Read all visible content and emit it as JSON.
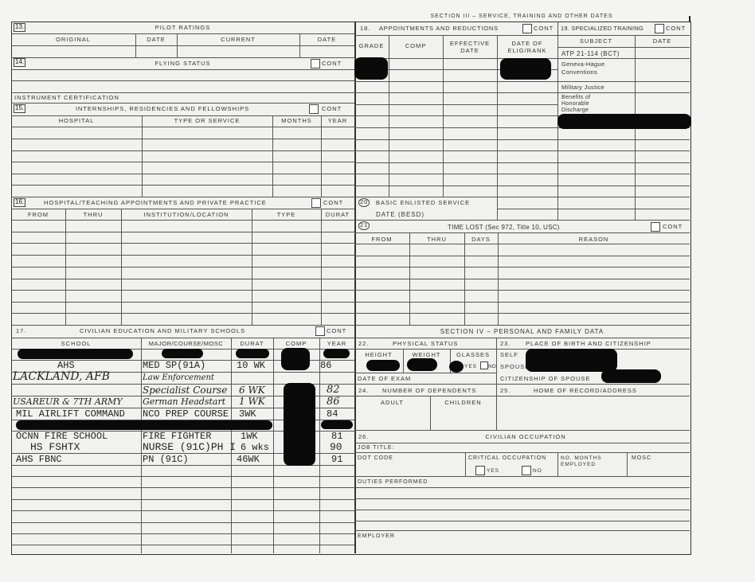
{
  "section3_title": "SECTION III – SERVICE, TRAINING AND OTHER DATES",
  "cont": "CONT",
  "s13": {
    "num": "13.",
    "title": "PILOT RATINGS",
    "cols": [
      "ORIGINAL",
      "DATE",
      "CURRENT",
      "DATE"
    ]
  },
  "s14": {
    "num": "14.",
    "title": "FLYING STATUS",
    "instrument": "INSTRUMENT CERTIFICATION"
  },
  "s15": {
    "num": "15.",
    "title": "INTERNSHIPS, RESIDENCIES AND FELLOWSHIPS",
    "cols": [
      "HOSPITAL",
      "TYPE OR SERVICE",
      "MONTHS",
      "YEAR"
    ]
  },
  "s16": {
    "num": "16.",
    "title": "HOSPITAL/TEACHING APPOINTMENTS AND PRIVATE PRACTICE",
    "cols": [
      "FROM",
      "THRU",
      "INSTITUTION/LOCATION",
      "TYPE",
      "DURAT"
    ]
  },
  "s17": {
    "num": "17.",
    "title": "CIVILIAN EDUCATION AND MILITARY SCHOOLS",
    "cols": [
      "SCHOOL",
      "MAJOR/COURSE/MOSC",
      "DURAT",
      "COMP",
      "YEAR"
    ],
    "rows": [
      {
        "school": "AHS",
        "major": "MED SP(91A)",
        "durat": "10 WK",
        "year": "86"
      },
      {
        "school": "LACKLAND, AFB",
        "major": "Law Enforcement",
        "durat": "",
        "year": ""
      },
      {
        "school": "",
        "major": "Specialist Course",
        "durat": "6 WK",
        "year": "82"
      },
      {
        "school": "USAREUR & 7TH ARMY",
        "major": "German Headstart",
        "durat": "1 WK",
        "year": "86"
      },
      {
        "school": "MIL AIRLIFT COMMAND",
        "major": "NCO PREP COURSE",
        "durat": "3WK",
        "year": "84"
      },
      {
        "school": "OCNN FIRE SCHOOL",
        "major": "FIRE FIGHTER",
        "durat": "1WK",
        "year": "81"
      },
      {
        "school": "HS FSHTX",
        "major": "NURSE (91C)PH I",
        "durat": "6 wks",
        "year": "90"
      },
      {
        "school": "AHS FBNC",
        "major": "PN (91C)",
        "durat": "46WK",
        "year": "91"
      }
    ]
  },
  "s18": {
    "num": "18.",
    "title": "APPOINTMENTS AND REDUCTIONS",
    "cols": [
      "GRADE",
      "COMP",
      "EFFECTIVE DATE",
      "DATE OF ELIG/RANK"
    ]
  },
  "s19": {
    "title": "19. SPECIALIZED TRAINING",
    "cols": [
      "SUBJECT",
      "DATE"
    ],
    "items": [
      "ATP 21-114 (BCT)",
      "Geneva-Hague Conventions",
      "Military Justice",
      "Benefits of Honorable Discharge"
    ]
  },
  "s20": {
    "num": "20",
    "title": "BASIC ENLISTED SERVICE",
    "sub": "DATE (BESD)"
  },
  "s21": {
    "num": "21",
    "title": "TIME LOST (Sec 972, Title 10, USC)",
    "cols": [
      "FROM",
      "THRU",
      "DAYS",
      "REASON"
    ]
  },
  "section4_title": "SECTION IV – PERSONAL AND FAMILY DATA",
  "s22": {
    "num": "22.",
    "title": "PHYSICAL STATUS",
    "cols": [
      "HEIGHT",
      "WEIGHT",
      "GLASSES"
    ],
    "yes": "YES",
    "no": "NO",
    "exam": "DATE OF EXAM"
  },
  "s23": {
    "num": "23.",
    "title": "PLACE OF BIRTH AND CITIZENSHIP",
    "self": "SELF",
    "spouse": "SPOUSE",
    "cit_spouse": "CITIZENSHIP OF SPOUSE"
  },
  "s24": {
    "num": "24.",
    "title": "NUMBER OF DEPENDENTS",
    "adult": "ADULT",
    "children": "CHILDREN"
  },
  "s25": {
    "num": "25.",
    "title": "HOME OF RECORD/ADDRESS"
  },
  "s26": {
    "num": "26.",
    "title": "CIVILIAN OCCUPATION",
    "job": "JOB TITLE:",
    "dot": "DOT CODE",
    "critical": "CRITICAL OCCUPATION",
    "yes": "YES",
    "no": "NO",
    "months": "NO. MONTHS EMPLOYED",
    "mosc": "MOSC",
    "duties": "DUTIES PERFORMED",
    "employer": "EMPLOYER"
  }
}
